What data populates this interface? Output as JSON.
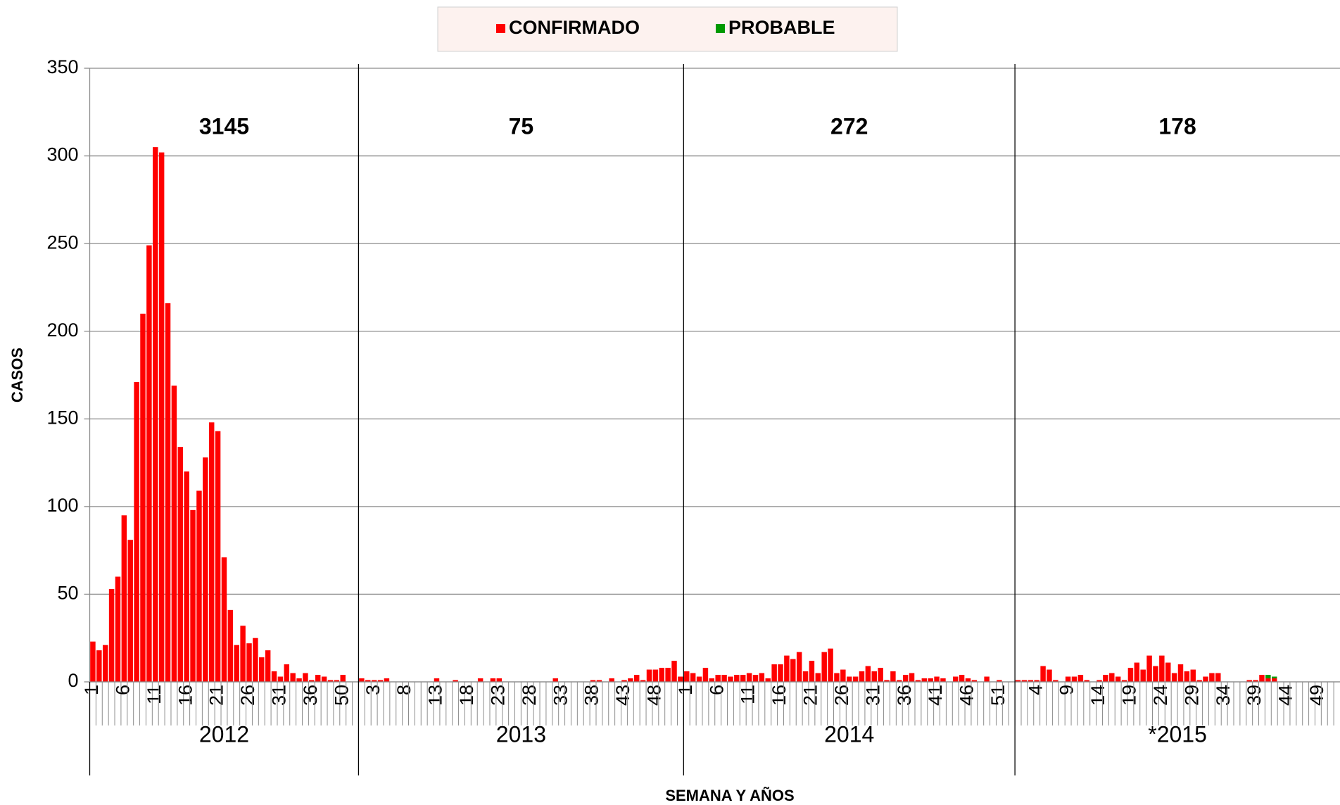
{
  "chart_data": {
    "type": "bar",
    "stacked": true,
    "grid": true,
    "legend": "top",
    "ylabel": "CASOS",
    "xlabel": "SEMANA Y AÑOS",
    "ylim": [
      0,
      350
    ],
    "yticks": [
      0,
      50,
      100,
      150,
      200,
      250,
      300,
      350
    ],
    "groups": [
      {
        "label": "2012",
        "total": 3145,
        "categories": [
          1,
          null,
          null,
          null,
          null,
          6,
          null,
          null,
          null,
          null,
          11,
          null,
          null,
          null,
          null,
          16,
          null,
          null,
          null,
          null,
          21,
          null,
          null,
          null,
          null,
          26,
          null,
          null,
          null,
          null,
          31,
          null,
          null,
          null,
          null,
          36,
          null,
          null,
          null,
          null,
          50,
          null,
          null
        ]
      },
      {
        "label": "2013",
        "total": 75,
        "categories": [
          null,
          null,
          3,
          null,
          null,
          null,
          null,
          8,
          null,
          null,
          null,
          null,
          13,
          null,
          null,
          null,
          null,
          18,
          null,
          null,
          null,
          null,
          23,
          null,
          null,
          null,
          null,
          28,
          null,
          null,
          null,
          null,
          33,
          null,
          null,
          null,
          null,
          38,
          null,
          null,
          null,
          null,
          43,
          null,
          null,
          null,
          null,
          48,
          null,
          null,
          null,
          null
        ]
      },
      {
        "label": "2014",
        "total": 272,
        "categories": [
          1,
          null,
          null,
          null,
          null,
          6,
          null,
          null,
          null,
          null,
          11,
          null,
          null,
          null,
          null,
          16,
          null,
          null,
          null,
          null,
          21,
          null,
          null,
          null,
          null,
          26,
          null,
          null,
          null,
          null,
          31,
          null,
          null,
          null,
          null,
          36,
          null,
          null,
          null,
          null,
          41,
          null,
          null,
          null,
          null,
          46,
          null,
          null,
          null,
          null,
          51,
          null,
          null
        ]
      },
      {
        "label": "*2015",
        "total": 178,
        "categories": [
          null,
          null,
          null,
          4,
          null,
          null,
          null,
          null,
          9,
          null,
          null,
          null,
          null,
          14,
          null,
          null,
          null,
          null,
          19,
          null,
          null,
          null,
          null,
          24,
          null,
          null,
          null,
          null,
          29,
          null,
          null,
          null,
          null,
          34,
          null,
          null,
          null,
          null,
          39,
          null,
          null,
          null,
          null,
          44,
          null,
          null,
          null,
          null,
          49,
          null,
          null,
          null
        ]
      }
    ],
    "series": [
      {
        "name": "CONFIRMADO",
        "color": "#ff0000",
        "values": [
          23,
          18,
          21,
          53,
          60,
          95,
          81,
          171,
          210,
          249,
          305,
          302,
          216,
          169,
          134,
          120,
          98,
          109,
          128,
          148,
          143,
          71,
          41,
          21,
          32,
          22,
          25,
          14,
          18,
          6,
          3,
          10,
          5,
          2,
          5,
          1,
          4,
          3,
          1,
          1,
          4,
          0,
          0,
          2,
          1,
          1,
          1,
          2,
          0,
          0,
          0,
          0,
          0,
          0,
          0,
          2,
          0,
          0,
          1,
          0,
          0,
          0,
          2,
          0,
          2,
          2,
          0,
          0,
          0,
          0,
          0,
          0,
          0,
          0,
          2,
          0,
          0,
          0,
          0,
          0,
          1,
          1,
          0,
          2,
          0,
          1,
          2,
          4,
          1,
          7,
          7,
          8,
          8,
          12,
          3,
          6,
          5,
          3,
          8,
          2,
          4,
          4,
          3,
          4,
          4,
          5,
          4,
          5,
          2,
          10,
          10,
          15,
          13,
          17,
          6,
          12,
          5,
          17,
          19,
          5,
          7,
          3,
          3,
          6,
          9,
          6,
          8,
          1,
          6,
          1,
          4,
          5,
          1,
          2,
          2,
          3,
          2,
          0,
          3,
          4,
          2,
          1,
          0,
          3,
          0,
          1,
          0,
          0,
          1,
          1,
          1,
          1,
          9,
          7,
          1,
          0,
          3,
          3,
          4,
          1,
          0,
          1,
          4,
          5,
          3,
          1,
          8,
          11,
          7,
          15,
          9,
          15,
          11,
          5,
          10,
          6,
          7,
          1,
          3,
          5,
          5,
          0,
          0,
          0,
          0,
          1,
          1,
          4,
          2,
          2,
          0,
          0,
          0,
          0,
          0,
          0,
          0,
          0,
          0,
          0
        ]
      },
      {
        "name": "PROBABLE",
        "color": "#009a00",
        "values": [
          0,
          0,
          0,
          0,
          0,
          0,
          0,
          0,
          0,
          0,
          0,
          0,
          0,
          0,
          0,
          0,
          0,
          0,
          0,
          0,
          0,
          0,
          0,
          0,
          0,
          0,
          0,
          0,
          0,
          0,
          0,
          0,
          0,
          0,
          0,
          0,
          0,
          0,
          0,
          0,
          0,
          0,
          0,
          0,
          0,
          0,
          0,
          0,
          0,
          0,
          0,
          0,
          0,
          0,
          0,
          0,
          0,
          0,
          0,
          0,
          0,
          0,
          0,
          0,
          0,
          0,
          0,
          0,
          0,
          0,
          0,
          0,
          0,
          0,
          0,
          0,
          0,
          0,
          0,
          0,
          0,
          0,
          0,
          0,
          0,
          0,
          0,
          0,
          0,
          0,
          0,
          0,
          0,
          0,
          0,
          0,
          0,
          0,
          0,
          0,
          0,
          0,
          0,
          0,
          0,
          0,
          0,
          0,
          0,
          0,
          0,
          0,
          0,
          0,
          0,
          0,
          0,
          0,
          0,
          0,
          0,
          0,
          0,
          0,
          0,
          0,
          0,
          0,
          0,
          0,
          0,
          0,
          0,
          0,
          0,
          0,
          0,
          0,
          0,
          0,
          0,
          0,
          0,
          0,
          0,
          0,
          0,
          0,
          0,
          0,
          0,
          0,
          0,
          0,
          0,
          0,
          0,
          0,
          0,
          0,
          0,
          0,
          0,
          0,
          0,
          0,
          0,
          0,
          0,
          0,
          0,
          0,
          0,
          0,
          0,
          0,
          0,
          0,
          0,
          0,
          0,
          0,
          0,
          0,
          0,
          0,
          0,
          0,
          2,
          1,
          0,
          0,
          0,
          0,
          0,
          0,
          0,
          0,
          0,
          0
        ]
      }
    ]
  }
}
